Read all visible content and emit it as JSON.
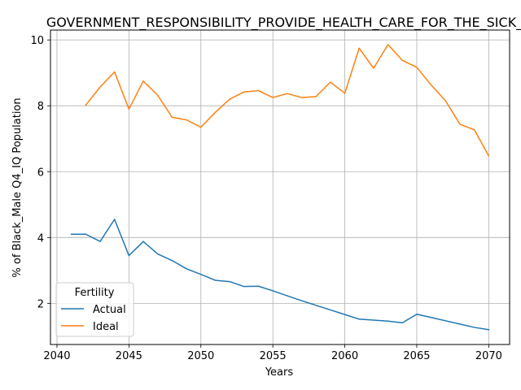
{
  "chart_data": {
    "type": "line",
    "title": "GOVERNMENT_RESPONSIBILITY_PROVIDE_HEALTH_CARE_FOR_THE_SICK_for_B",
    "xlabel": "Years",
    "ylabel": "% of Black_Male Q4_IQ Population",
    "xlim": [
      2039.55,
      2071.45
    ],
    "ylim": [
      0.75,
      10.3
    ],
    "xticks": [
      2040,
      2045,
      2050,
      2055,
      2060,
      2065,
      2070
    ],
    "yticks": [
      2,
      4,
      6,
      8,
      10
    ],
    "grid": true,
    "legend": {
      "title": "Fertility",
      "placement": "lower-left"
    },
    "series": [
      {
        "name": "Actual",
        "color": "#1f77b4",
        "x": [
          2041,
          2042,
          2043,
          2044,
          2045,
          2046,
          2047,
          2048,
          2049,
          2050,
          2051,
          2052,
          2053,
          2054,
          2055,
          2056,
          2057,
          2058,
          2059,
          2060,
          2061,
          2062,
          2063,
          2064,
          2065,
          2066,
          2067,
          2068,
          2069,
          2070
        ],
        "values": [
          4.1,
          4.1,
          3.88,
          4.55,
          3.45,
          3.88,
          3.5,
          3.3,
          3.05,
          2.88,
          2.7,
          2.66,
          2.51,
          2.52,
          2.38,
          2.23,
          2.08,
          1.94,
          1.8,
          1.66,
          1.52,
          1.49,
          1.46,
          1.41,
          1.67,
          1.57,
          1.47,
          1.37,
          1.27,
          1.2
        ]
      },
      {
        "name": "Ideal",
        "color": "#ff7f0e",
        "x": [
          2042,
          2043,
          2044,
          2045,
          2046,
          2047,
          2048,
          2049,
          2050,
          2051,
          2052,
          2053,
          2054,
          2055,
          2056,
          2057,
          2058,
          2059,
          2060,
          2061,
          2062,
          2063,
          2064,
          2065,
          2066,
          2067,
          2068,
          2069,
          2070
        ],
        "values": [
          8.02,
          8.57,
          9.03,
          7.9,
          8.75,
          8.32,
          7.65,
          7.57,
          7.35,
          7.8,
          8.2,
          8.42,
          8.46,
          8.25,
          8.37,
          8.25,
          8.28,
          8.72,
          8.38,
          9.75,
          9.14,
          9.86,
          9.38,
          9.17,
          8.63,
          8.15,
          7.44,
          7.27,
          6.48
        ]
      }
    ]
  }
}
